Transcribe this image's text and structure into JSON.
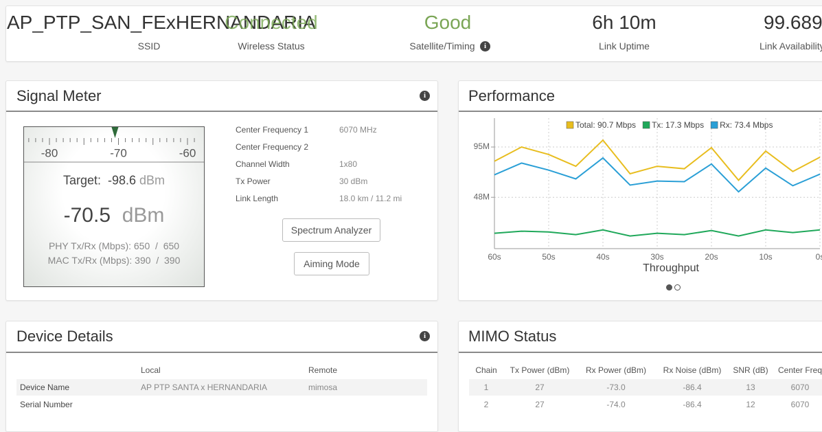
{
  "header": {
    "ssid": {
      "value": "AP_PTP_SAN_FExHERNANDARIA",
      "label": "SSID"
    },
    "stats": [
      {
        "value": "Connected",
        "label": "Wireless Status"
      },
      {
        "value": "Good",
        "label": "Satellite/Timing"
      },
      {
        "value": "6h 10m",
        "label": "Link Uptime"
      },
      {
        "value": "99.689",
        "label": "Link Availability"
      }
    ]
  },
  "signal_meter": {
    "title": "Signal Meter",
    "scale": [
      -80,
      -70,
      -60
    ],
    "target_label": "Target:",
    "target_value": -98.6,
    "unit": "dBm",
    "rssi": -70.5,
    "phy_label": "PHY Tx/Rx (Mbps):",
    "phy_tx": 650,
    "phy_rx": 650,
    "mac_label": "MAC Tx/Rx (Mbps):",
    "mac_tx": 390,
    "mac_rx": 390,
    "separator": "/",
    "info": [
      [
        "Center Frequency 1",
        "6070 MHz"
      ],
      [
        "Center Frequency 2",
        ""
      ],
      [
        "Channel Width",
        "1x80"
      ],
      [
        "Tx Power",
        "30 dBm"
      ],
      [
        "Link Length",
        "18.0 km / 11.2 mi"
      ]
    ],
    "buttons": [
      "Spectrum Analyzer",
      "Aiming Mode"
    ]
  },
  "chart_data": {
    "type": "line",
    "title": "Performance",
    "xlabel": "Throughput",
    "x": [
      60,
      55,
      50,
      45,
      40,
      35,
      30,
      25,
      20,
      15,
      10,
      5,
      0
    ],
    "xlim": [
      60,
      0
    ],
    "xticks": [
      {
        "value": 60,
        "label": "60s"
      },
      {
        "value": 50,
        "label": "50s"
      },
      {
        "value": 40,
        "label": "40s"
      },
      {
        "value": 30,
        "label": "30s"
      },
      {
        "value": 20,
        "label": "20s"
      },
      {
        "value": 10,
        "label": "10s"
      },
      {
        "value": 0,
        "label": "0s"
      }
    ],
    "ylim": [
      0,
      122
    ],
    "yticks": [
      {
        "value": 95,
        "label": "95M"
      },
      {
        "value": 48,
        "label": "48M"
      }
    ],
    "grid": true,
    "series": [
      {
        "name": "Total: 90.7 Mbps",
        "color": "#e8bd1e",
        "values": [
          81.7,
          95,
          88,
          77,
          101.4,
          70,
          77,
          74.7,
          94.4,
          63.9,
          91.2,
          72.1,
          85.5
        ]
      },
      {
        "name": "Tx: 17.3 Mbps",
        "color": "#1fa85a",
        "values": [
          14.4,
          16.3,
          15.6,
          13.1,
          17.5,
          11.8,
          14.4,
          13.1,
          16.9,
          11.8,
          17.5,
          15,
          17.5
        ]
      },
      {
        "name": "Rx: 73.4 Mbps",
        "color": "#2a9fd6",
        "values": [
          69,
          80,
          73.4,
          65.2,
          84.8,
          59.4,
          63.2,
          62.6,
          79.1,
          53.1,
          75.3,
          58.8,
          69.6
        ]
      }
    ]
  },
  "device_details": {
    "title": "Device Details",
    "columns": [
      "Local",
      "Remote"
    ],
    "rows": [
      [
        "Device Name",
        "AP PTP SANTA x HERNANDARIA",
        "mimosa"
      ],
      [
        "Serial Number",
        "",
        ""
      ]
    ]
  },
  "mimo_status": {
    "title": "MIMO Status",
    "columns": [
      "Chain",
      "Tx Power (dBm)",
      "Rx Power (dBm)",
      "Rx Noise (dBm)",
      "SNR (dB)",
      "Center Freq"
    ],
    "rows": [
      [
        "1",
        "27",
        "-73.0",
        "-86.4",
        "13",
        "6070"
      ],
      [
        "2",
        "27",
        "-74.0",
        "-86.4",
        "12",
        "6070"
      ]
    ]
  }
}
